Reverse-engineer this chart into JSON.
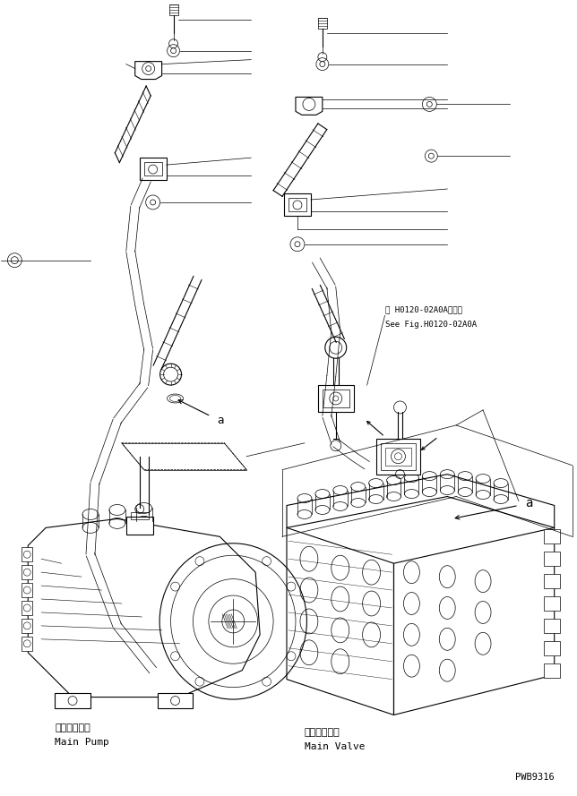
{
  "bg_color": "#ffffff",
  "line_color": "#000000",
  "fig_width": 6.44,
  "fig_height": 8.89,
  "dpi": 100,
  "text_ref_line1": "第 H0120-02A0A図参照",
  "text_ref_line2": "See Fig.H0120-02A0A",
  "text_main_pump_jp": "メインポンプ",
  "text_main_pump_en": "Main Pump",
  "text_main_valve_jp": "メインバルブ",
  "text_main_valve_en": "Main Valve",
  "text_pwb": "PWB9316"
}
